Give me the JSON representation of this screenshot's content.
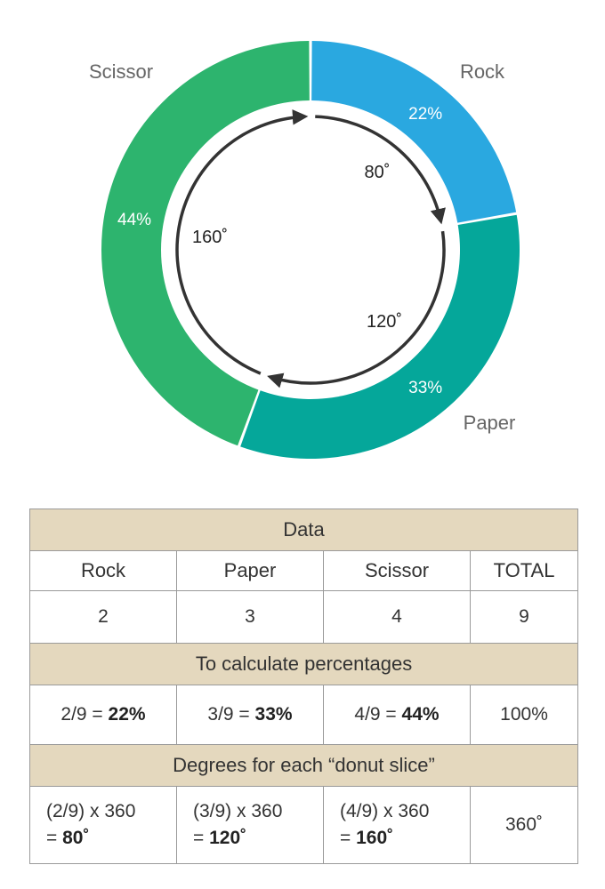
{
  "chart_data": {
    "type": "pie",
    "variant": "donut",
    "slices": [
      {
        "label": "Rock",
        "value": 22,
        "display": "22%",
        "color": "#2aa8e0",
        "degrees": 80,
        "degrees_label": "80˚"
      },
      {
        "label": "Paper",
        "value": 33,
        "display": "33%",
        "color": "#05a79a",
        "degrees": 120,
        "degrees_label": "120˚"
      },
      {
        "label": "Scissor",
        "value": 44,
        "display": "44%",
        "color": "#2db46e",
        "degrees": 160,
        "degrees_label": "160˚"
      }
    ],
    "label_color": "#666666",
    "inner_text_color": "#222222",
    "arrow_color": "#333333"
  },
  "table": {
    "title": "Data",
    "headers": [
      "Rock",
      "Paper",
      "Scissor",
      "TOTAL"
    ],
    "counts": [
      "2",
      "3",
      "4",
      "9"
    ],
    "pct_title": "To calculate percentages",
    "pct": [
      {
        "expr": "2/9 = ",
        "result": "22%"
      },
      {
        "expr": "3/9 = ",
        "result": "33%"
      },
      {
        "expr": "4/9 = ",
        "result": "44%"
      }
    ],
    "pct_total": "100%",
    "deg_title": "Degrees for each “donut slice”",
    "deg": [
      {
        "expr": "(2/9) x 360",
        "prefix": "= ",
        "result": "80˚"
      },
      {
        "expr": "(3/9) x 360",
        "prefix": "= ",
        "result": "120˚"
      },
      {
        "expr": "(4/9) x 360",
        "prefix": "= ",
        "result": "160˚"
      }
    ],
    "deg_total": "360˚"
  }
}
